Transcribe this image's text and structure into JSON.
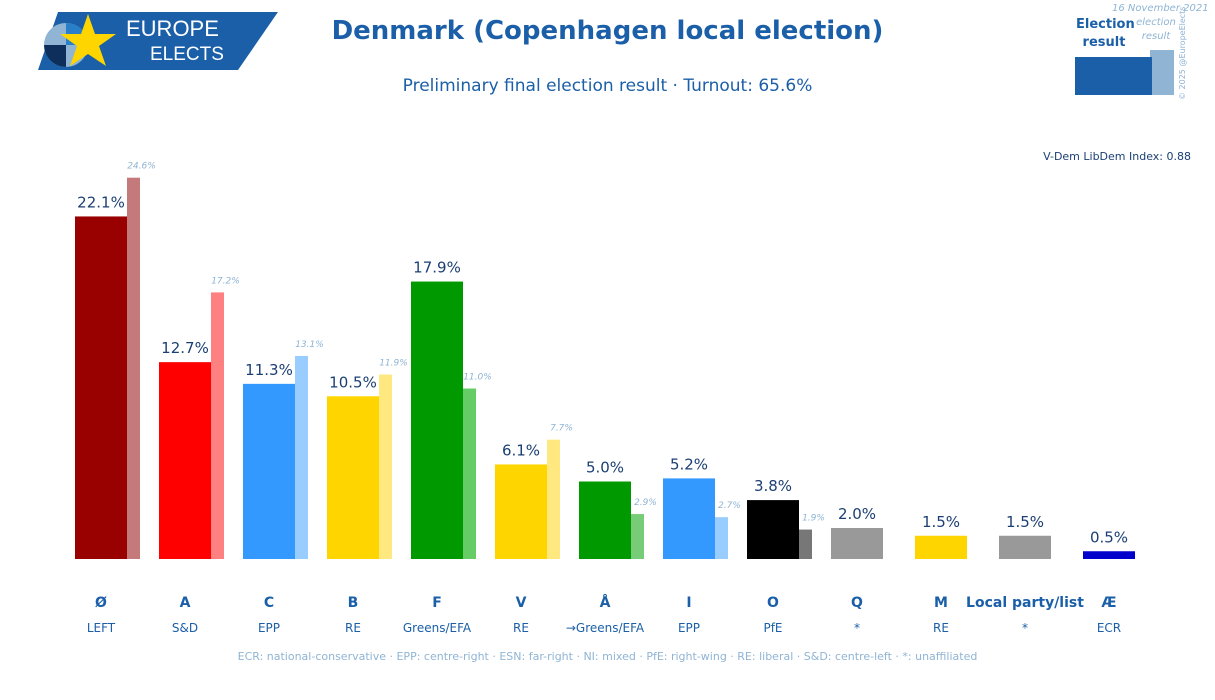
{
  "logo": {
    "line1": "EUROPE",
    "line2": "ELECTS"
  },
  "title": "Denmark (Copenhagen local election)",
  "subtitle": "Preliminary final election result · Turnout: 65.6%",
  "date": "16 November 2021",
  "copyright": "© 2025 @EuropeElects",
  "legend": {
    "current_line1": "Election",
    "current_line2": "result",
    "previous_line1": "election",
    "previous_line2": "result"
  },
  "vdem": "V-Dem LibDem Index: 0.88",
  "footnote": "ECR: national-conservative · EPP: centre-right · ESN: far-right · NI: mixed · PfE: right-wing · RE: liberal · S&D: centre-left · *: unaffiliated",
  "chart_data": {
    "type": "bar",
    "title": "Denmark (Copenhagen local election)",
    "value_suffix": "%",
    "categories": [
      "Ø",
      "A",
      "C",
      "B",
      "F",
      "V",
      "Å",
      "I",
      "O",
      "Q",
      "M",
      "Local party/list",
      "Æ"
    ],
    "groups": [
      "LEFT",
      "S&D",
      "EPP",
      "RE",
      "Greens/EFA",
      "RE",
      "→Greens/EFA",
      "EPP",
      "PfE",
      "*",
      "RE",
      "*",
      "ECR"
    ],
    "series": [
      {
        "name": "Election result",
        "values": [
          22.1,
          12.7,
          11.3,
          10.5,
          17.9,
          6.1,
          5.0,
          5.2,
          3.8,
          2.0,
          1.5,
          1.5,
          0.5
        ]
      },
      {
        "name": "Previous election result",
        "values": [
          24.6,
          17.2,
          13.1,
          11.9,
          11.0,
          7.7,
          2.9,
          2.7,
          1.9,
          null,
          null,
          null,
          null
        ]
      }
    ],
    "colors": [
      "#990000",
      "#ff0000",
      "#3399ff",
      "#ffd500",
      "#009900",
      "#ffd500",
      "#009900",
      "#3399ff",
      "#000000",
      "#999999",
      "#ffd500",
      "#999999",
      "#0000cc"
    ],
    "prev_colors": [
      "#c47a7a",
      "#ff8080",
      "#99ccff",
      "#ffe880",
      "#66cc66",
      "#ffe880",
      "#77cc77",
      "#99ccff",
      "#777777",
      "#bbbbbb",
      "#ffe880",
      "#bbbbbb",
      "#6666dd"
    ],
    "ylim": [
      0,
      25
    ]
  }
}
